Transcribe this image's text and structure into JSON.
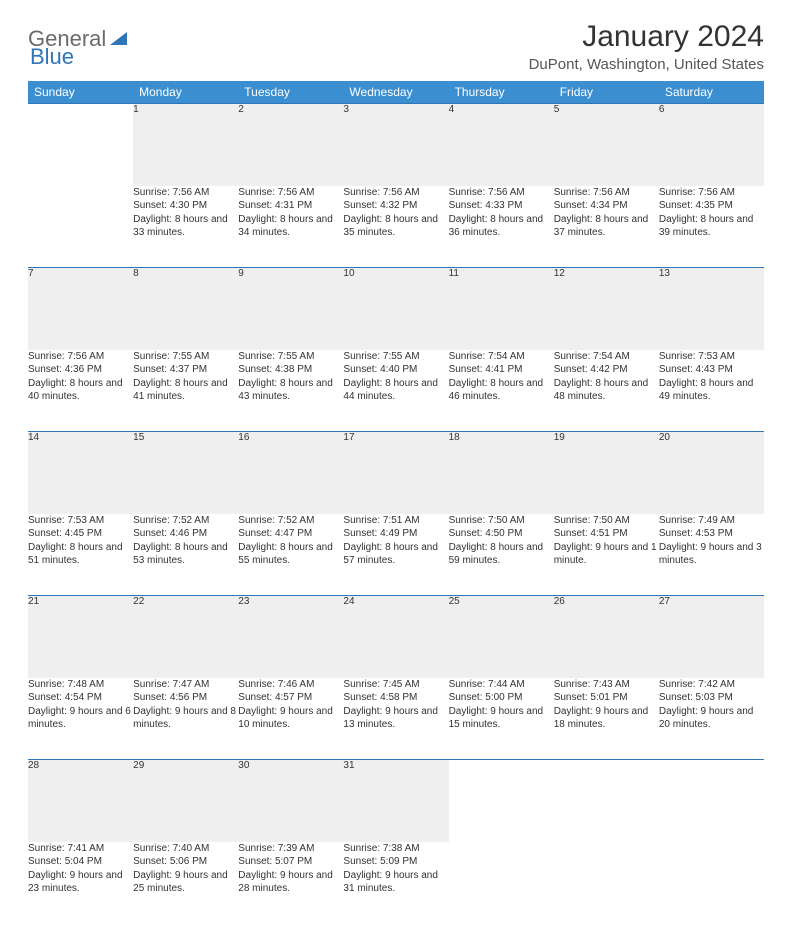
{
  "brand": {
    "part1": "General",
    "part2": "Blue"
  },
  "title": "January 2024",
  "location": "DuPont, Washington, United States",
  "colors": {
    "header_bg": "#3b8fd0",
    "header_text": "#ffffff",
    "daynum_bg": "#efefef",
    "rule": "#2f76b8",
    "text": "#333333",
    "muted": "#707070",
    "brand_gray": "#6b6b6b",
    "brand_blue": "#2f76b8"
  },
  "dayNames": [
    "Sunday",
    "Monday",
    "Tuesday",
    "Wednesday",
    "Thursday",
    "Friday",
    "Saturday"
  ],
  "weeks": [
    [
      null,
      {
        "n": "1",
        "sr": "7:56 AM",
        "ss": "4:30 PM",
        "dl": "8 hours and 33 minutes."
      },
      {
        "n": "2",
        "sr": "7:56 AM",
        "ss": "4:31 PM",
        "dl": "8 hours and 34 minutes."
      },
      {
        "n": "3",
        "sr": "7:56 AM",
        "ss": "4:32 PM",
        "dl": "8 hours and 35 minutes."
      },
      {
        "n": "4",
        "sr": "7:56 AM",
        "ss": "4:33 PM",
        "dl": "8 hours and 36 minutes."
      },
      {
        "n": "5",
        "sr": "7:56 AM",
        "ss": "4:34 PM",
        "dl": "8 hours and 37 minutes."
      },
      {
        "n": "6",
        "sr": "7:56 AM",
        "ss": "4:35 PM",
        "dl": "8 hours and 39 minutes."
      }
    ],
    [
      {
        "n": "7",
        "sr": "7:56 AM",
        "ss": "4:36 PM",
        "dl": "8 hours and 40 minutes."
      },
      {
        "n": "8",
        "sr": "7:55 AM",
        "ss": "4:37 PM",
        "dl": "8 hours and 41 minutes."
      },
      {
        "n": "9",
        "sr": "7:55 AM",
        "ss": "4:38 PM",
        "dl": "8 hours and 43 minutes."
      },
      {
        "n": "10",
        "sr": "7:55 AM",
        "ss": "4:40 PM",
        "dl": "8 hours and 44 minutes."
      },
      {
        "n": "11",
        "sr": "7:54 AM",
        "ss": "4:41 PM",
        "dl": "8 hours and 46 minutes."
      },
      {
        "n": "12",
        "sr": "7:54 AM",
        "ss": "4:42 PM",
        "dl": "8 hours and 48 minutes."
      },
      {
        "n": "13",
        "sr": "7:53 AM",
        "ss": "4:43 PM",
        "dl": "8 hours and 49 minutes."
      }
    ],
    [
      {
        "n": "14",
        "sr": "7:53 AM",
        "ss": "4:45 PM",
        "dl": "8 hours and 51 minutes."
      },
      {
        "n": "15",
        "sr": "7:52 AM",
        "ss": "4:46 PM",
        "dl": "8 hours and 53 minutes."
      },
      {
        "n": "16",
        "sr": "7:52 AM",
        "ss": "4:47 PM",
        "dl": "8 hours and 55 minutes."
      },
      {
        "n": "17",
        "sr": "7:51 AM",
        "ss": "4:49 PM",
        "dl": "8 hours and 57 minutes."
      },
      {
        "n": "18",
        "sr": "7:50 AM",
        "ss": "4:50 PM",
        "dl": "8 hours and 59 minutes."
      },
      {
        "n": "19",
        "sr": "7:50 AM",
        "ss": "4:51 PM",
        "dl": "9 hours and 1 minute."
      },
      {
        "n": "20",
        "sr": "7:49 AM",
        "ss": "4:53 PM",
        "dl": "9 hours and 3 minutes."
      }
    ],
    [
      {
        "n": "21",
        "sr": "7:48 AM",
        "ss": "4:54 PM",
        "dl": "9 hours and 6 minutes."
      },
      {
        "n": "22",
        "sr": "7:47 AM",
        "ss": "4:56 PM",
        "dl": "9 hours and 8 minutes."
      },
      {
        "n": "23",
        "sr": "7:46 AM",
        "ss": "4:57 PM",
        "dl": "9 hours and 10 minutes."
      },
      {
        "n": "24",
        "sr": "7:45 AM",
        "ss": "4:58 PM",
        "dl": "9 hours and 13 minutes."
      },
      {
        "n": "25",
        "sr": "7:44 AM",
        "ss": "5:00 PM",
        "dl": "9 hours and 15 minutes."
      },
      {
        "n": "26",
        "sr": "7:43 AM",
        "ss": "5:01 PM",
        "dl": "9 hours and 18 minutes."
      },
      {
        "n": "27",
        "sr": "7:42 AM",
        "ss": "5:03 PM",
        "dl": "9 hours and 20 minutes."
      }
    ],
    [
      {
        "n": "28",
        "sr": "7:41 AM",
        "ss": "5:04 PM",
        "dl": "9 hours and 23 minutes."
      },
      {
        "n": "29",
        "sr": "7:40 AM",
        "ss": "5:06 PM",
        "dl": "9 hours and 25 minutes."
      },
      {
        "n": "30",
        "sr": "7:39 AM",
        "ss": "5:07 PM",
        "dl": "9 hours and 28 minutes."
      },
      {
        "n": "31",
        "sr": "7:38 AM",
        "ss": "5:09 PM",
        "dl": "9 hours and 31 minutes."
      },
      null,
      null,
      null
    ]
  ],
  "labels": {
    "sunrise": "Sunrise:",
    "sunset": "Sunset:",
    "daylight": "Daylight:"
  }
}
